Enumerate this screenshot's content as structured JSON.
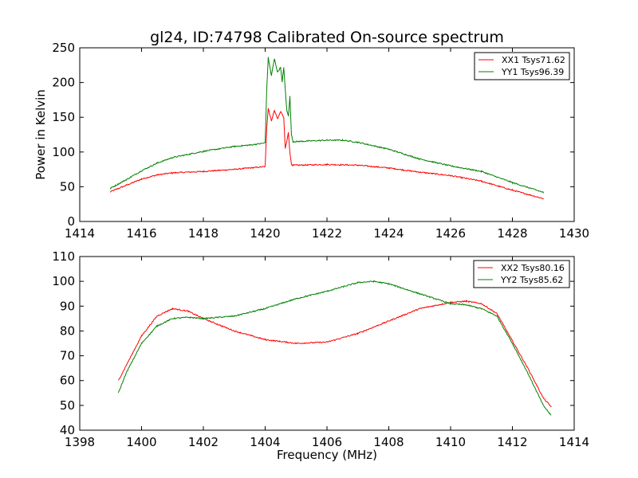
{
  "figure": {
    "title": "gl24, ID:74798 Calibrated On-source spectrum"
  },
  "chart_data": [
    {
      "type": "line",
      "title": "gl24, ID:74798 Calibrated On-source spectrum",
      "xlabel": "",
      "ylabel": "Power in Kelvin",
      "xlim": [
        1414,
        1430
      ],
      "ylim": [
        0,
        250
      ],
      "xticks": [
        1414,
        1416,
        1418,
        1420,
        1422,
        1424,
        1426,
        1428,
        1430
      ],
      "yticks": [
        0,
        50,
        100,
        150,
        200,
        250
      ],
      "grid": false,
      "legend_position": "top-right",
      "series": [
        {
          "name": "XX1 Tsys71.62",
          "color": "#ff0000",
          "x": [
            1415.0,
            1415.5,
            1416.0,
            1416.5,
            1417.0,
            1418.0,
            1419.0,
            1419.5,
            1420.0,
            1420.05,
            1420.1,
            1420.2,
            1420.3,
            1420.4,
            1420.5,
            1420.6,
            1420.65,
            1420.7,
            1420.75,
            1420.8,
            1420.85,
            1420.9,
            1421.0,
            1422.0,
            1423.0,
            1424.0,
            1425.0,
            1426.0,
            1427.0,
            1428.0,
            1429.0
          ],
          "y": [
            43,
            52,
            61,
            67,
            70,
            72,
            75,
            77,
            79,
            135,
            163,
            145,
            160,
            148,
            158,
            150,
            105,
            115,
            128,
            100,
            82,
            81,
            81,
            82,
            81,
            77,
            71,
            66,
            58,
            45,
            33
          ]
        },
        {
          "name": "YY1 Tsys96.39",
          "color": "#008000",
          "x": [
            1415.0,
            1415.5,
            1416.0,
            1416.5,
            1417.0,
            1418.0,
            1419.0,
            1419.5,
            1420.0,
            1420.05,
            1420.1,
            1420.2,
            1420.3,
            1420.4,
            1420.5,
            1420.55,
            1420.6,
            1420.65,
            1420.7,
            1420.75,
            1420.8,
            1420.85,
            1420.9,
            1421.0,
            1422.0,
            1422.5,
            1423.0,
            1424.0,
            1425.0,
            1426.0,
            1427.0,
            1428.0,
            1429.0
          ],
          "y": [
            48,
            60,
            73,
            84,
            92,
            101,
            108,
            110,
            113,
            190,
            236,
            210,
            234,
            215,
            222,
            200,
            222,
            190,
            160,
            152,
            180,
            125,
            115,
            115,
            117,
            117,
            114,
            104,
            90,
            80,
            72,
            56,
            42
          ]
        }
      ]
    },
    {
      "type": "line",
      "title": "",
      "xlabel": "Frequency (MHz)",
      "ylabel": "",
      "xlim": [
        1398,
        1414
      ],
      "ylim": [
        40,
        110
      ],
      "xticks": [
        1398,
        1400,
        1402,
        1404,
        1406,
        1408,
        1410,
        1412,
        1414
      ],
      "yticks": [
        40,
        50,
        60,
        70,
        80,
        90,
        100,
        110
      ],
      "grid": false,
      "legend_position": "top-right",
      "series": [
        {
          "name": "XX2 Tsys80.16",
          "color": "#ff0000",
          "x": [
            1399.25,
            1399.5,
            1400.0,
            1400.5,
            1401.0,
            1401.5,
            1402.0,
            1403.0,
            1404.0,
            1405.0,
            1406.0,
            1407.0,
            1408.0,
            1409.0,
            1410.0,
            1410.5,
            1411.0,
            1411.5,
            1412.0,
            1412.5,
            1413.0,
            1413.25
          ],
          "y": [
            60,
            66,
            78,
            86,
            89,
            88,
            85,
            80,
            76.5,
            75,
            75.5,
            79,
            84,
            89,
            91.5,
            92,
            91,
            87,
            76,
            65,
            53,
            49.5
          ]
        },
        {
          "name": "YY2 Tsys85.62",
          "color": "#008000",
          "x": [
            1399.25,
            1399.5,
            1400.0,
            1400.5,
            1401.0,
            1401.5,
            1402.0,
            1403.0,
            1404.0,
            1405.0,
            1406.0,
            1407.0,
            1407.5,
            1408.0,
            1409.0,
            1410.0,
            1410.5,
            1411.0,
            1411.5,
            1412.0,
            1412.5,
            1413.0,
            1413.25
          ],
          "y": [
            55,
            63,
            75,
            82,
            85,
            85.5,
            85,
            86,
            89,
            93,
            96,
            99.5,
            100,
            99,
            95,
            91,
            90.5,
            89,
            86,
            75,
            63,
            50,
            46
          ]
        }
      ]
    }
  ]
}
